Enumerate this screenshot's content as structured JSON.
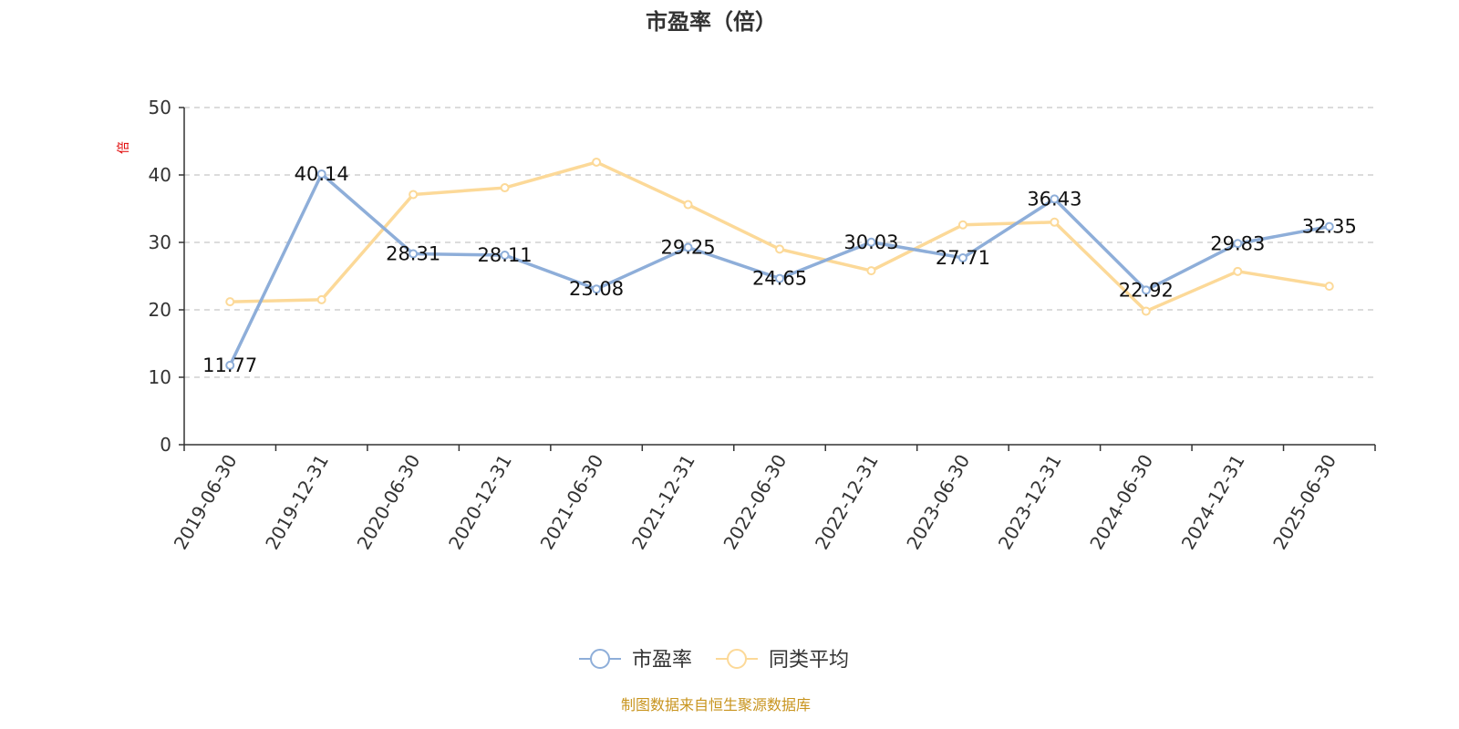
{
  "chart_data": {
    "type": "line",
    "title": "市盈率（倍）",
    "ylabel": "倍",
    "ylim": [
      0,
      50
    ],
    "yticks": [
      0,
      10,
      20,
      30,
      40,
      50
    ],
    "grid": true,
    "legend_position": "bottom-center",
    "categories": [
      "2019-06-30",
      "2019-12-31",
      "2020-06-30",
      "2020-12-31",
      "2021-06-30",
      "2021-12-31",
      "2022-06-30",
      "2022-12-31",
      "2023-06-30",
      "2023-12-31",
      "2024-06-30",
      "2024-12-31",
      "2025-06-30"
    ],
    "series": [
      {
        "name": "市盈率",
        "color": "#8eaed9",
        "values": [
          11.77,
          40.14,
          28.31,
          28.11,
          23.08,
          29.25,
          24.65,
          30.03,
          27.71,
          36.43,
          22.92,
          29.83,
          32.35
        ],
        "labels": [
          "11.77",
          "40.14",
          "28.31",
          "28.11",
          "23.08",
          "29.25",
          "24.65",
          "30.03",
          "27.71",
          "36.43",
          "22.92",
          "29.83",
          "32.35"
        ]
      },
      {
        "name": "同类平均",
        "color": "#fcd998",
        "values": [
          21.2,
          21.5,
          37.1,
          38.1,
          41.9,
          35.6,
          29.0,
          25.8,
          32.6,
          33.0,
          19.8,
          25.7,
          23.5
        ]
      }
    ],
    "source_note": "制图数据来自恒生聚源数据库"
  }
}
